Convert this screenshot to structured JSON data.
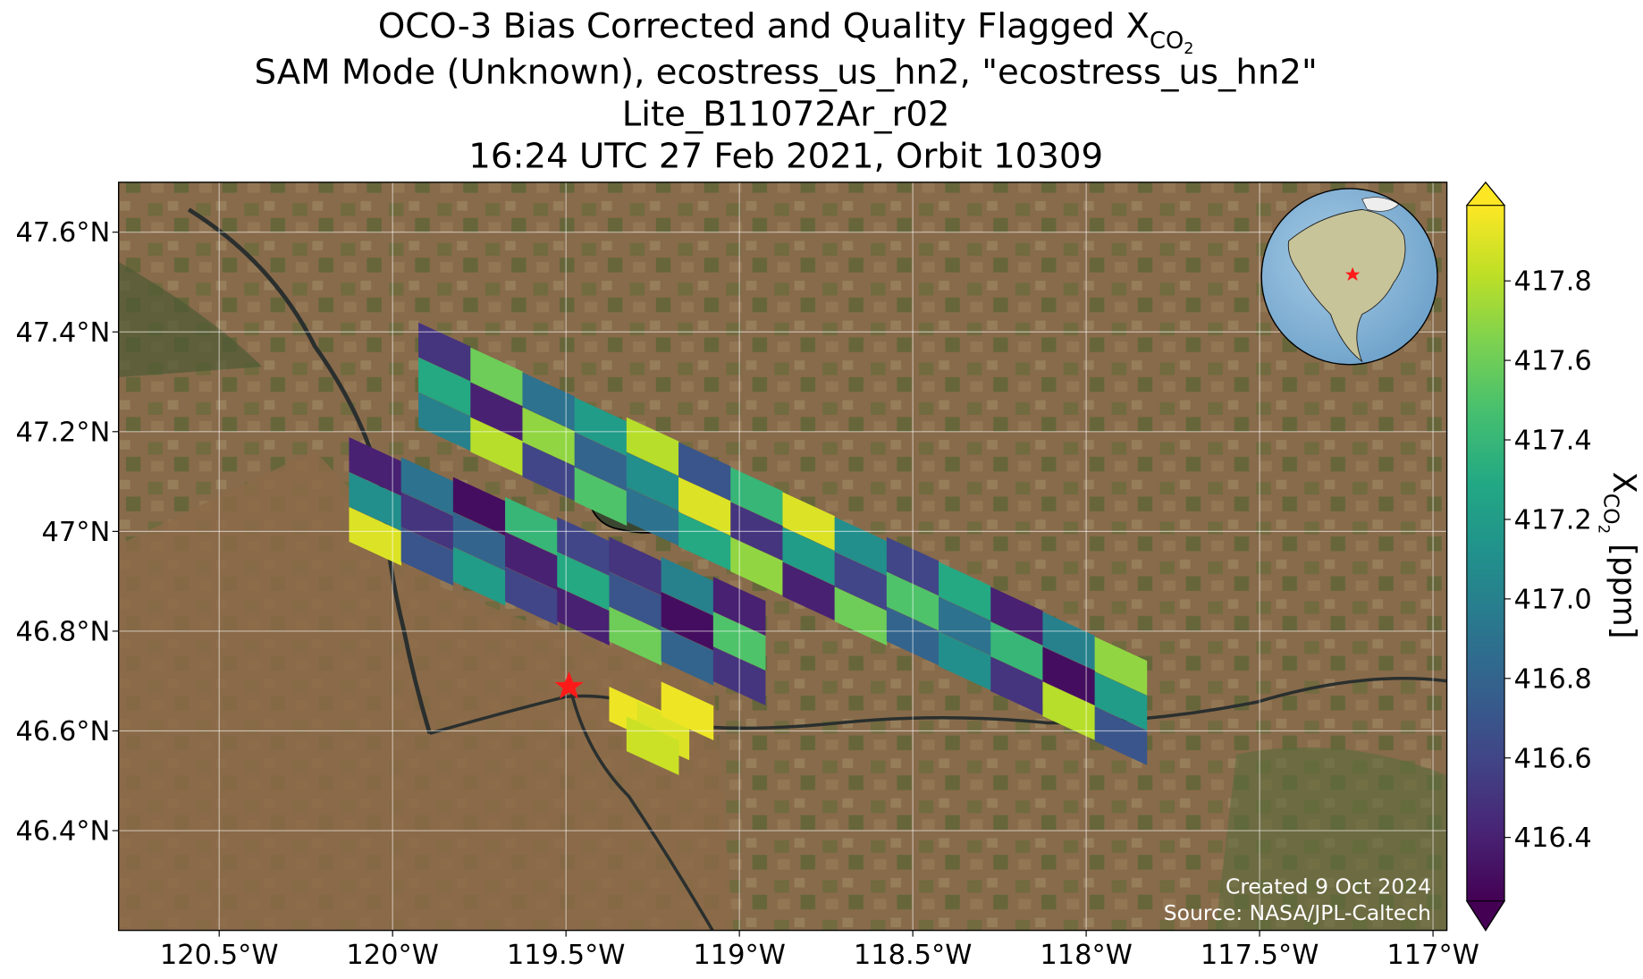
{
  "chart_data": {
    "type": "map",
    "title_lines": [
      "SAM Mode (Unknown), ecostress_us_hn2, \"ecostress_us_hn2\"",
      "Lite_B11072Ar_r02",
      "16:24 UTC 27 Feb 2021, Orbit 10309"
    ],
    "title_main": "OCO-3 Bias Corrected and Quality Flagged X",
    "title_sub": "CO",
    "title_subsub": "2",
    "xlim": [
      -120.79,
      -116.96
    ],
    "ylim": [
      46.2,
      47.7
    ],
    "xticks": [
      {
        "value": -120.5,
        "label": "120.5°W"
      },
      {
        "value": -120,
        "label": "120°W"
      },
      {
        "value": -119.5,
        "label": "119.5°W"
      },
      {
        "value": -119,
        "label": "119°W"
      },
      {
        "value": -118.5,
        "label": "118.5°W"
      },
      {
        "value": -118,
        "label": "118°W"
      },
      {
        "value": -117.5,
        "label": "117.5°W"
      },
      {
        "value": -117,
        "label": "117°W"
      }
    ],
    "yticks": [
      {
        "value": 46.4,
        "label": "46.4°N"
      },
      {
        "value": 46.6,
        "label": "46.6°N"
      },
      {
        "value": 46.8,
        "label": "46.8°N"
      },
      {
        "value": 47,
        "label": "47°N"
      },
      {
        "value": 47.2,
        "label": "47.2°N"
      },
      {
        "value": 47.4,
        "label": "47.4°N"
      },
      {
        "value": 47.6,
        "label": "47.6°N"
      }
    ],
    "grid": true,
    "colorbar": {
      "colormap": "viridis",
      "lim": [
        416.24,
        417.99
      ],
      "ticks": [
        416.4,
        416.6,
        416.8,
        417.0,
        417.2,
        417.4,
        417.6,
        417.8
      ],
      "label_main": "X",
      "label_sub": "CO",
      "label_subsub": "2",
      "label_unit": " [ppm]"
    },
    "annotations": [
      "Created 9 Oct 2024",
      "Source: NASA/JPL-Caltech"
    ],
    "cells": {
      "lon": [
        -119.85,
        -119.7,
        -119.55,
        -119.4,
        -119.25,
        -119.1,
        -118.95,
        -118.8,
        -118.65,
        -118.5,
        -118.35,
        -118.2,
        -118.05,
        -117.9,
        -119.85,
        -119.7,
        -119.55,
        -119.4,
        -119.25,
        -119.1,
        -118.95,
        -118.8,
        -118.65,
        -118.5,
        -118.35,
        -118.2,
        -118.05,
        -117.9,
        -119.85,
        -119.7,
        -119.55,
        -119.4,
        -119.25,
        -119.1,
        -118.95,
        -118.8,
        -118.65,
        -118.5,
        -118.35,
        -118.2,
        -118.05,
        -117.9,
        -120.05,
        -119.9,
        -119.75,
        -119.6,
        -119.45,
        -119.3,
        -119.15,
        -119.0,
        -120.05,
        -119.9,
        -119.75,
        -119.6,
        -119.45,
        -119.3,
        -119.15,
        -119.0,
        -120.05,
        -119.9,
        -119.75,
        -119.6,
        -119.45,
        -119.3,
        -119.15,
        -119.0,
        -119.3,
        -119.22,
        -119.15,
        -119.25
      ],
      "lat": [
        47.36,
        47.31,
        47.26,
        47.21,
        47.17,
        47.12,
        47.07,
        47.02,
        46.97,
        46.93,
        46.88,
        46.83,
        46.78,
        46.73,
        47.29,
        47.24,
        47.19,
        47.14,
        47.1,
        47.05,
        47.0,
        46.95,
        46.9,
        46.86,
        46.81,
        46.76,
        46.71,
        46.66,
        47.22,
        47.17,
        47.12,
        47.07,
        47.03,
        46.98,
        46.93,
        46.88,
        46.83,
        46.79,
        46.74,
        46.69,
        46.64,
        46.59,
        47.13,
        47.09,
        47.05,
        47.01,
        46.97,
        46.93,
        46.89,
        46.85,
        47.06,
        47.02,
        46.98,
        46.94,
        46.9,
        46.86,
        46.82,
        46.78,
        46.99,
        46.95,
        46.91,
        46.87,
        46.83,
        46.79,
        46.75,
        46.71,
        46.63,
        46.6,
        46.64,
        46.57
      ],
      "xco2": [
        416.5,
        417.6,
        416.9,
        417.2,
        417.8,
        416.7,
        417.4,
        417.9,
        417.1,
        416.6,
        417.3,
        416.4,
        417.0,
        417.7,
        417.3,
        416.4,
        417.7,
        416.8,
        417.1,
        417.9,
        416.5,
        417.2,
        416.6,
        417.5,
        416.9,
        417.4,
        416.3,
        417.2,
        417.0,
        417.8,
        416.6,
        417.5,
        416.9,
        417.3,
        417.7,
        416.4,
        417.6,
        416.8,
        417.1,
        416.5,
        417.8,
        416.7,
        416.4,
        416.9,
        416.3,
        417.4,
        416.6,
        416.5,
        417.0,
        416.4,
        417.1,
        416.5,
        416.8,
        416.4,
        417.3,
        416.7,
        416.3,
        417.5,
        417.9,
        416.7,
        417.2,
        416.6,
        416.4,
        417.6,
        416.8,
        416.5,
        417.95,
        417.9,
        417.95,
        417.85
      ]
    }
  }
}
